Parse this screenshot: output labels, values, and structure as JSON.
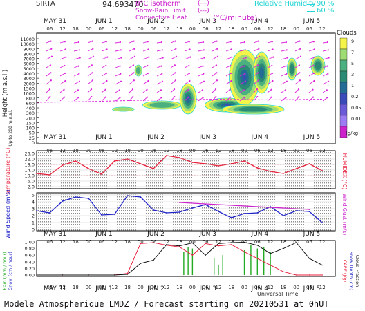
{
  "header": {
    "station": "SIRTA",
    "code": "94.693470",
    "legend_isotherm": "0°C isotherm",
    "legend_snow_rain": "Snow-Rain Limit",
    "legend_convective": "Convective Heat.",
    "legend_convective_unit": "(°C/minute)",
    "rh_label": "Relative Humidity",
    "rh_90": "90 %",
    "rh_60": "60 %",
    "legend_marker": "(---)"
  },
  "time_axis": {
    "dates": [
      "MAY 31",
      "JUN  1",
      "JUN  2",
      "JUN  3",
      "JUN  4",
      "JUN  5"
    ],
    "hours": [
      "06",
      "12",
      "18",
      "00",
      "06",
      "12",
      "18",
      "00",
      "06",
      "12",
      "18",
      "00",
      "06",
      "12",
      "18",
      "00",
      "06",
      "12",
      "18",
      "00",
      "06",
      "12",
      "18"
    ],
    "xlabel": "Universal Time"
  },
  "clouds_legend": {
    "title": "Clouds",
    "labels": [
      "9",
      "7",
      "5",
      "3",
      "1",
      "0.2",
      "0.05",
      "0.01"
    ],
    "unit": "(g/kg)",
    "colors": [
      "#cc22cc",
      "#9c7cf4",
      "#6a5ad8",
      "#3a4ab8",
      "#236c96",
      "#2a8a73",
      "#4bb080",
      "#9fdc73",
      "#f4f44a"
    ]
  },
  "footer": "Modele Atmospherique LMDZ / Forecast starting on 20210531 at 0hUT",
  "chart_data": [
    {
      "type": "heatmap",
      "ylabel": "Height (m a.s.l.)",
      "ylabel2": "Up to 200 m a.s.l.",
      "yticks": [
        "11000",
        "10000",
        "9000",
        "8000",
        "7000",
        "6000",
        "5000",
        "4000",
        "3000",
        "2000",
        "1500",
        "1000",
        "800",
        "600",
        "400",
        "300",
        "200",
        "150",
        "100",
        "50",
        "25",
        "0"
      ],
      "series": [
        {
          "name": "0°C isotherm",
          "x": [
            0,
            12,
            24,
            36,
            48,
            60,
            72,
            84,
            96,
            108,
            120,
            132
          ],
          "y": [
            2800,
            2850,
            2900,
            3000,
            3100,
            3150,
            3200,
            3250,
            3200,
            3150,
            3200,
            3250
          ]
        }
      ]
    },
    {
      "type": "line",
      "ylabel": "Temperature (°C)",
      "ylabel2": "HUMIDEX (°C)",
      "yticks": [
        "26.0",
        "22.0",
        "18.0",
        "14.0",
        "10.0",
        "6.0",
        "2.0"
      ],
      "ylim": [
        2,
        26
      ],
      "x": [
        0,
        6,
        12,
        18,
        24,
        30,
        36,
        42,
        48,
        54,
        60,
        66,
        72,
        78,
        84,
        90,
        96,
        102,
        108,
        114,
        120,
        126,
        132
      ],
      "series": [
        {
          "name": "Temperature",
          "color": "#e8203c",
          "values": [
            11.5,
            10.5,
            17.5,
            20.5,
            15.0,
            11.0,
            20.5,
            22.0,
            18.5,
            15.0,
            24.5,
            23.0,
            19.5,
            18.5,
            17.0,
            18.5,
            20.5,
            15.5,
            13.0,
            11.5,
            15.0,
            18.5,
            13.5
          ]
        }
      ]
    },
    {
      "type": "line",
      "ylabel": "Wind Speed (m/s)",
      "ylabel2": "Wind Gust (m/s)",
      "yticks": [
        "5",
        "4",
        "3",
        "2",
        "1",
        "0"
      ],
      "ylim": [
        0,
        5
      ],
      "x": [
        0,
        6,
        12,
        18,
        24,
        30,
        36,
        42,
        48,
        54,
        60,
        66,
        72,
        78,
        84,
        90,
        96,
        102,
        108,
        114,
        120,
        126,
        132
      ],
      "series": [
        {
          "name": "Wind Speed",
          "color": "#1e22c8",
          "values": [
            2.7,
            2.4,
            4.1,
            4.7,
            4.5,
            2.1,
            2.2,
            4.9,
            4.7,
            2.8,
            2.4,
            2.5,
            3.1,
            3.6,
            2.6,
            1.7,
            2.3,
            2.4,
            3.3,
            2.0,
            2.7,
            2.6,
            1.0
          ]
        },
        {
          "name": "Wind Gust",
          "color": "#cc22cc",
          "values": [
            null,
            null,
            null,
            null,
            null,
            null,
            null,
            null,
            null,
            null,
            null,
            3.9,
            null,
            null,
            null,
            null,
            null,
            null,
            null,
            null,
            null,
            2.9,
            null
          ]
        }
      ]
    },
    {
      "type": "bar",
      "ylabel": "Rain (mm / hour)",
      "ylabel_b": "Snow (cm / hour)",
      "ylabel2": "CAPE (J/g)",
      "ylabel2_b": "Snow Depth (cm)",
      "ylabel2_c": "Cloud Fraction",
      "yticks": [
        "1.00",
        "0.80",
        "0.60",
        "0.40",
        "0.20",
        "0.00"
      ],
      "ylim": [
        0,
        1
      ],
      "series": [
        {
          "name": "Cloud Fraction",
          "color": "#111111",
          "x": [
            0,
            12,
            24,
            36,
            42,
            48,
            54,
            60,
            66,
            72,
            78,
            84,
            90,
            96,
            102,
            108,
            114,
            120,
            126,
            132
          ],
          "values": [
            0,
            0,
            0,
            0,
            0.02,
            0.35,
            0.45,
            0.92,
            0.88,
            0.97,
            0.6,
            0.95,
            0.98,
            0.99,
            0.9,
            0.65,
            0.8,
            0.98,
            0.5,
            0.3
          ]
        },
        {
          "name": "CAPE",
          "color": "#e8203c",
          "x": [
            0,
            12,
            24,
            36,
            42,
            48,
            54,
            60,
            66,
            72,
            78,
            84,
            90,
            96,
            102,
            108,
            114,
            120,
            126,
            132
          ],
          "values": [
            0,
            0,
            0,
            0,
            0.05,
            0.95,
            0.98,
            0.9,
            0.85,
            0.6,
            0.95,
            0.88,
            0.92,
            0.7,
            0.5,
            0.3,
            0.1,
            0,
            0,
            0
          ]
        },
        {
          "name": "Rain",
          "color": "#22aa22",
          "x": [
            68,
            70,
            72,
            82,
            84,
            86,
            96,
            99,
            102,
            105,
            108
          ],
          "values": [
            0.7,
            0.85,
            0.8,
            0.5,
            0.3,
            0.6,
            0.75,
            0.9,
            0.8,
            0.85,
            0.7
          ]
        }
      ]
    }
  ]
}
